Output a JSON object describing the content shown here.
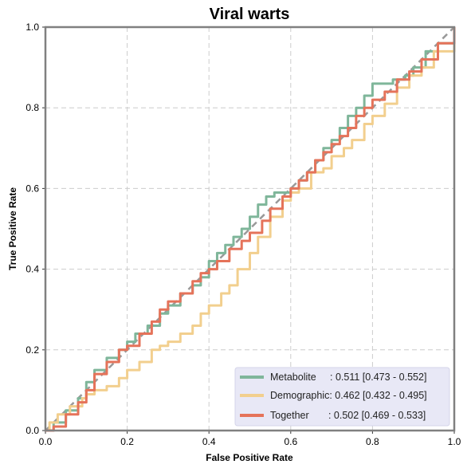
{
  "chart_data": {
    "type": "line",
    "title": "Viral warts",
    "xlabel": "False Positive Rate",
    "ylabel": "True Positive Rate",
    "xlim": [
      0,
      1
    ],
    "ylim": [
      0,
      1
    ],
    "xticks": [
      "0.0",
      "0.2",
      "0.4",
      "0.6",
      "0.8",
      "1.0"
    ],
    "yticks": [
      "0.0",
      "0.2",
      "0.4",
      "0.6",
      "0.8",
      "1.0"
    ],
    "grid": true,
    "legend_position": "bottom-right",
    "colors": {
      "Metabolite": "#7fb69a",
      "Demographic": "#f2cf8e",
      "Together": "#e5735a",
      "chance": "#999999"
    },
    "series": [
      {
        "name": "Metabolite",
        "legend": "Metabolite     : 0.511 [0.473 - 0.552]",
        "x": [
          0,
          0.02,
          0.05,
          0.08,
          0.1,
          0.12,
          0.15,
          0.18,
          0.2,
          0.22,
          0.25,
          0.28,
          0.3,
          0.33,
          0.36,
          0.38,
          0.4,
          0.42,
          0.44,
          0.46,
          0.48,
          0.5,
          0.52,
          0.54,
          0.56,
          0.58,
          0.6,
          0.62,
          0.64,
          0.66,
          0.68,
          0.7,
          0.72,
          0.74,
          0.76,
          0.78,
          0.8,
          0.82,
          0.85,
          0.88,
          0.9,
          0.93,
          0.96,
          1.0
        ],
        "y": [
          0,
          0.02,
          0.05,
          0.08,
          0.12,
          0.15,
          0.18,
          0.2,
          0.22,
          0.24,
          0.26,
          0.29,
          0.31,
          0.34,
          0.36,
          0.38,
          0.42,
          0.44,
          0.46,
          0.48,
          0.5,
          0.53,
          0.56,
          0.58,
          0.59,
          0.59,
          0.6,
          0.62,
          0.64,
          0.67,
          0.7,
          0.72,
          0.75,
          0.78,
          0.8,
          0.83,
          0.86,
          0.86,
          0.87,
          0.88,
          0.9,
          0.94,
          0.96,
          1.0
        ]
      },
      {
        "name": "Demographic",
        "legend": "Demographic: 0.462 [0.432 - 0.495]",
        "x": [
          0,
          0.01,
          0.03,
          0.06,
          0.09,
          0.1,
          0.12,
          0.15,
          0.18,
          0.2,
          0.23,
          0.26,
          0.28,
          0.3,
          0.33,
          0.36,
          0.38,
          0.4,
          0.43,
          0.45,
          0.47,
          0.5,
          0.52,
          0.55,
          0.58,
          0.6,
          0.62,
          0.65,
          0.68,
          0.7,
          0.73,
          0.75,
          0.78,
          0.8,
          0.83,
          0.86,
          0.89,
          0.92,
          0.95,
          1.0
        ],
        "y": [
          0,
          0.02,
          0.04,
          0.06,
          0.08,
          0.09,
          0.1,
          0.11,
          0.13,
          0.15,
          0.17,
          0.2,
          0.21,
          0.22,
          0.24,
          0.26,
          0.29,
          0.31,
          0.34,
          0.36,
          0.4,
          0.44,
          0.48,
          0.53,
          0.57,
          0.59,
          0.6,
          0.64,
          0.65,
          0.68,
          0.7,
          0.72,
          0.76,
          0.78,
          0.81,
          0.85,
          0.88,
          0.9,
          0.94,
          1.0
        ]
      },
      {
        "name": "Together",
        "legend": "Together       : 0.502 [0.469 - 0.533]",
        "x": [
          0,
          0.02,
          0.05,
          0.08,
          0.1,
          0.12,
          0.15,
          0.18,
          0.2,
          0.23,
          0.26,
          0.28,
          0.3,
          0.33,
          0.36,
          0.38,
          0.4,
          0.42,
          0.45,
          0.48,
          0.5,
          0.53,
          0.55,
          0.58,
          0.6,
          0.62,
          0.64,
          0.66,
          0.68,
          0.7,
          0.72,
          0.74,
          0.76,
          0.78,
          0.8,
          0.83,
          0.86,
          0.89,
          0.92,
          0.96,
          1.0
        ],
        "y": [
          0,
          0.01,
          0.04,
          0.07,
          0.1,
          0.14,
          0.17,
          0.2,
          0.21,
          0.24,
          0.27,
          0.3,
          0.32,
          0.34,
          0.37,
          0.39,
          0.4,
          0.42,
          0.45,
          0.47,
          0.49,
          0.52,
          0.55,
          0.58,
          0.6,
          0.62,
          0.64,
          0.67,
          0.69,
          0.71,
          0.73,
          0.75,
          0.78,
          0.8,
          0.82,
          0.84,
          0.87,
          0.89,
          0.92,
          0.96,
          1.0
        ]
      }
    ],
    "chance_line": {
      "x": [
        0,
        1
      ],
      "y": [
        0,
        1
      ],
      "style": "dashed"
    }
  }
}
